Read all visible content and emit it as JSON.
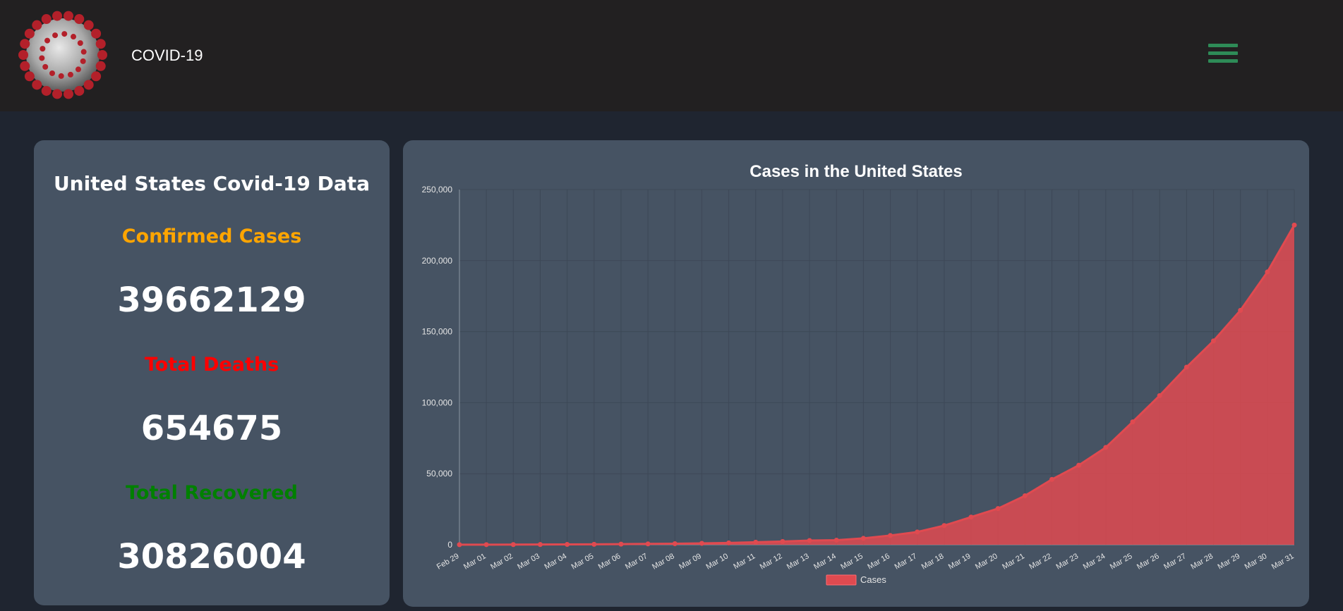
{
  "header": {
    "brand": "COVID-19",
    "logo_icon": "coronavirus-logo-icon",
    "menu_icon": "hamburger-menu-icon",
    "menu_color": "#2e8b57"
  },
  "stats": {
    "title": "United States Covid-19 Data",
    "confirmed_label": "Confirmed Cases",
    "confirmed_value": "39662129",
    "confirmed_color": "#ffa500",
    "deaths_label": "Total Deaths",
    "deaths_value": "654675",
    "deaths_color": "#ff0000",
    "recovered_label": "Total Recovered",
    "recovered_value": "30826004",
    "recovered_color": "#008000"
  },
  "chart_data": {
    "type": "area",
    "title": "Cases in the United States",
    "x": [
      "Feb 29",
      "Mar 01",
      "Mar 02",
      "Mar 03",
      "Mar 04",
      "Mar 05",
      "Mar 06",
      "Mar 07",
      "Mar 08",
      "Mar 09",
      "Mar 10",
      "Mar 11",
      "Mar 12",
      "Mar 13",
      "Mar 14",
      "Mar 15",
      "Mar 16",
      "Mar 17",
      "Mar 18",
      "Mar 19",
      "Mar 20",
      "Mar 21",
      "Mar 22",
      "Mar 23",
      "Mar 24",
      "Mar 25",
      "Mar 26",
      "Mar 27",
      "Mar 28",
      "Mar 29",
      "Mar 30",
      "Mar 31"
    ],
    "series": [
      {
        "name": "Cases",
        "color": "#e04a50",
        "values": [
          70,
          90,
          120,
          160,
          220,
          320,
          440,
          600,
          750,
          1000,
          1300,
          1800,
          2300,
          3000,
          3200,
          4500,
          6500,
          9000,
          13500,
          19500,
          25500,
          34500,
          46000,
          56000,
          68500,
          86500,
          105000,
          125000,
          143500,
          165000,
          192000,
          225000
        ]
      }
    ],
    "y_ticks": [
      "0",
      "50,000",
      "100,000",
      "150,000",
      "200,000",
      "250,000"
    ],
    "ylim": [
      0,
      250000
    ],
    "grid": true,
    "legend": "bottom"
  }
}
